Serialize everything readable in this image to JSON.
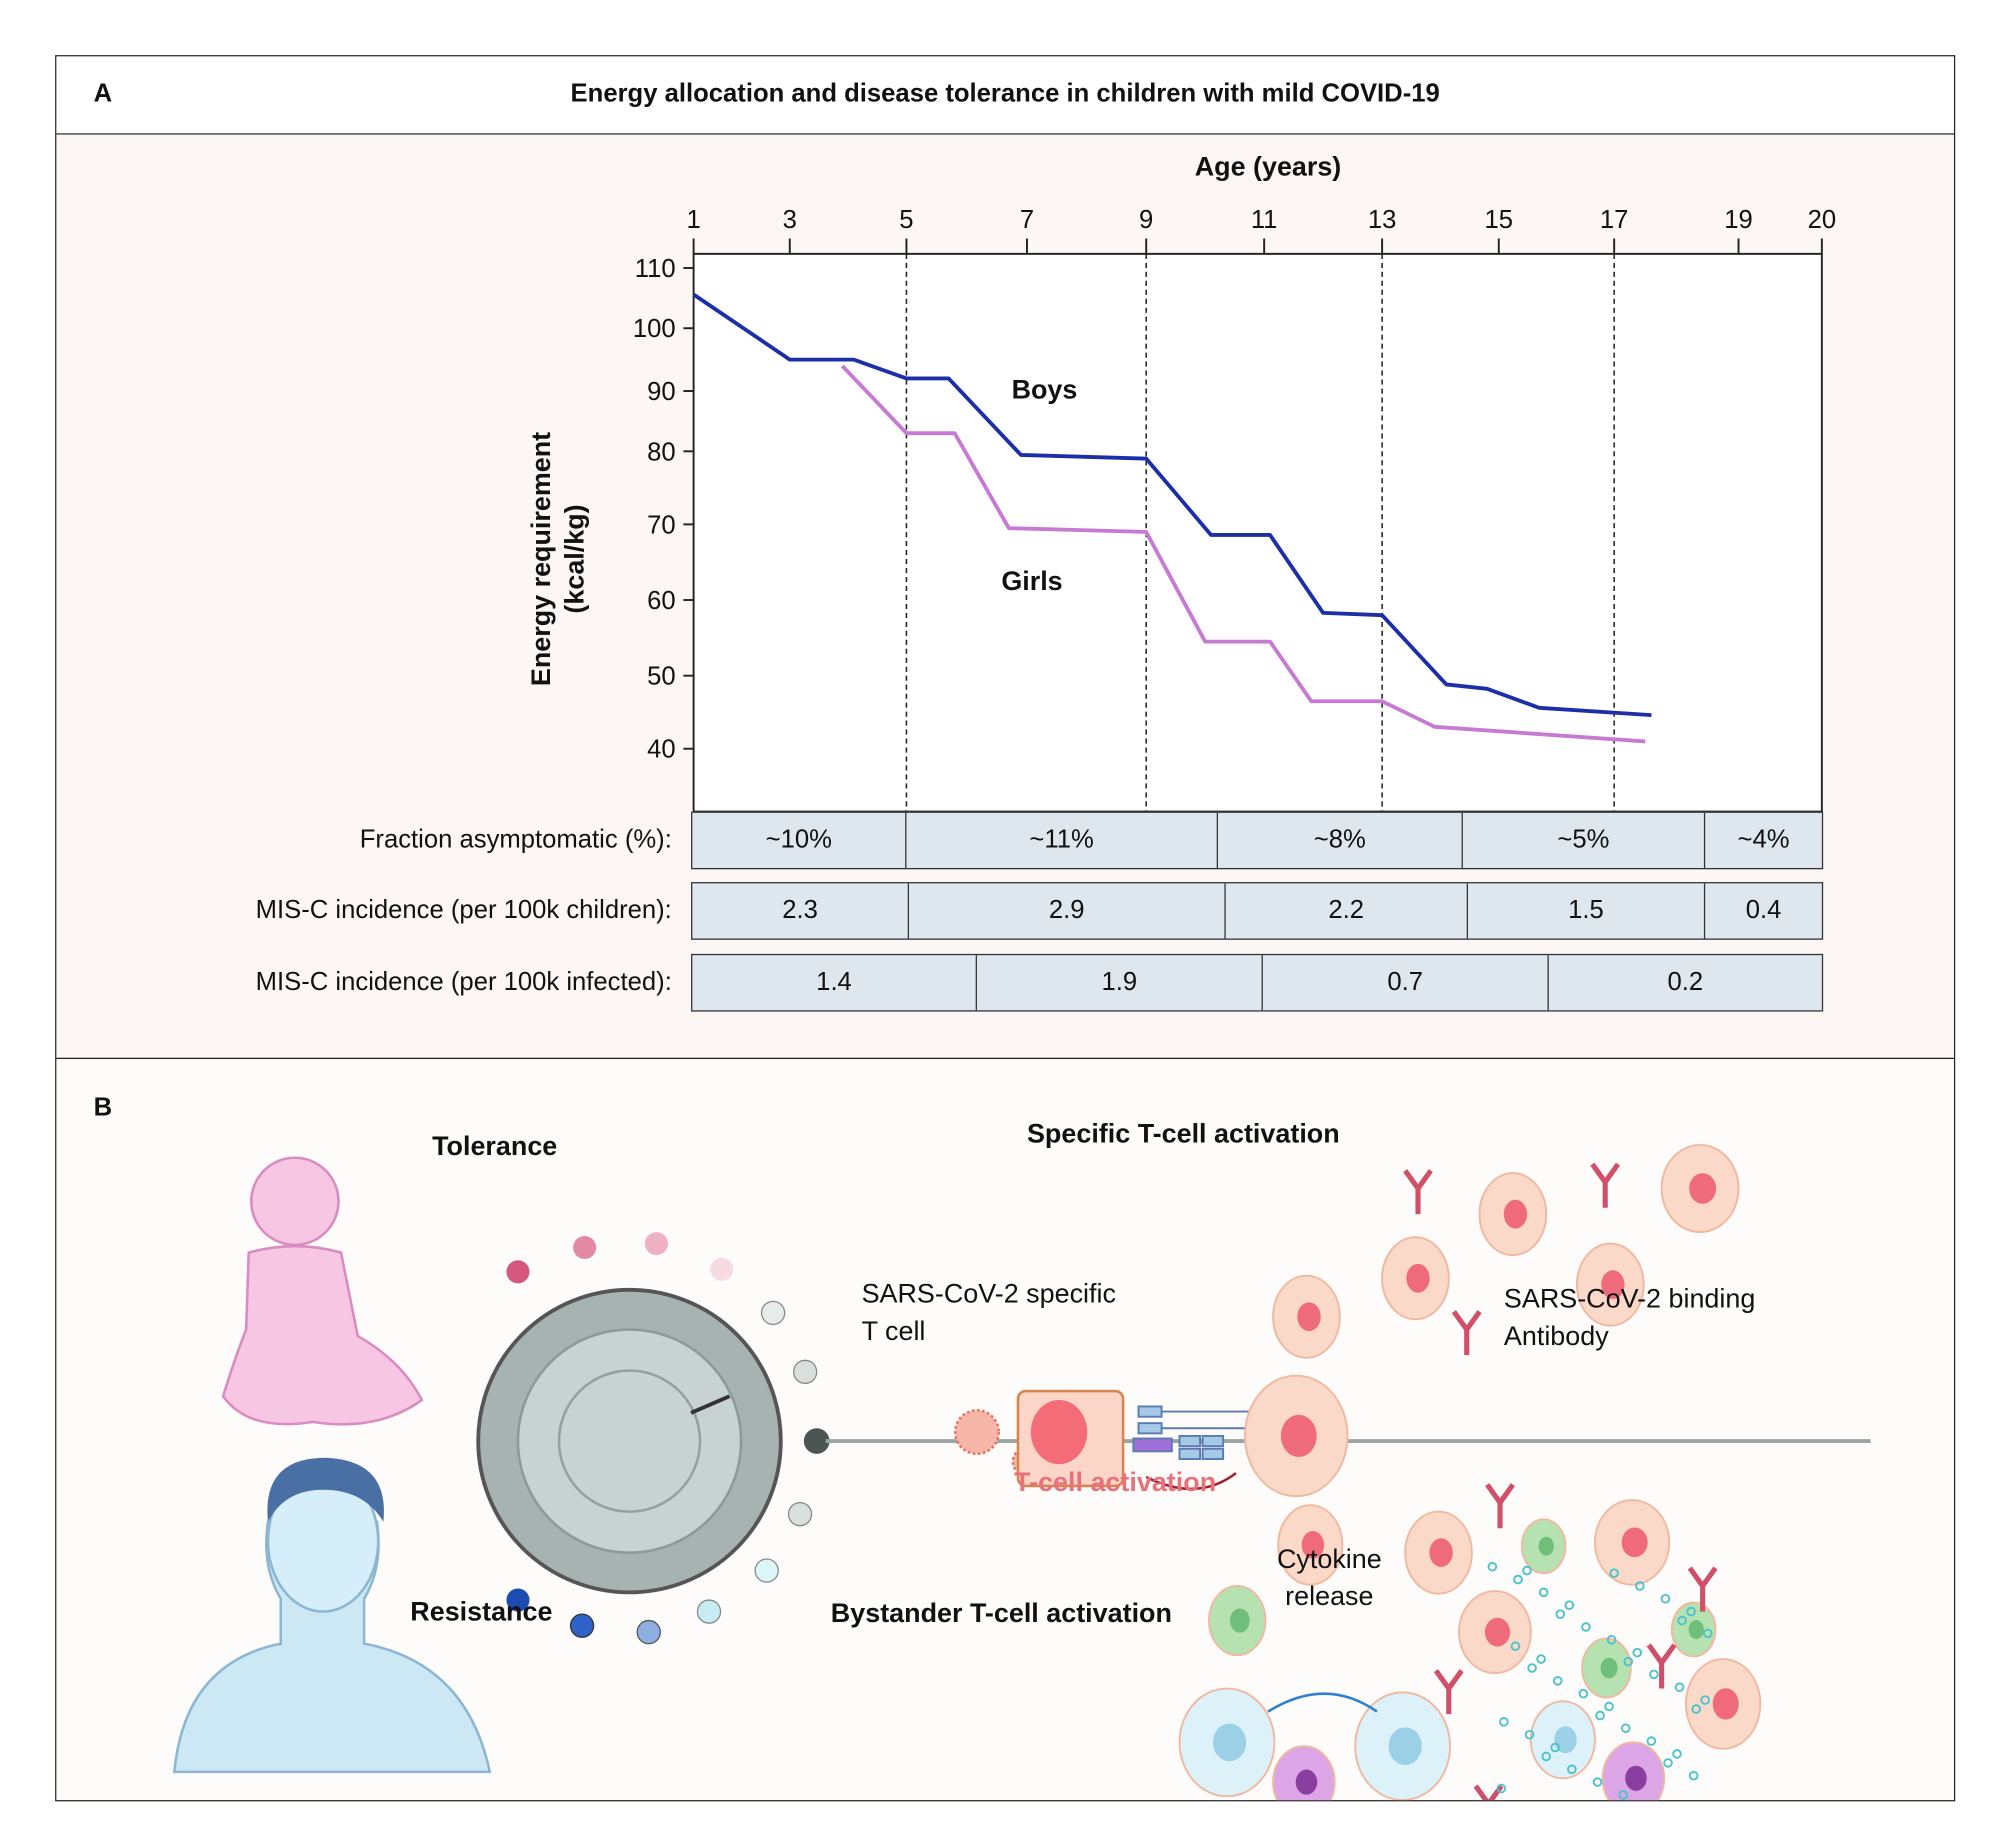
{
  "panel_a": {
    "letter": "A",
    "title": "Energy allocation and disease tolerance in children with mild COVID-19"
  },
  "chart_data": {
    "type": "line",
    "title": "Energy allocation and disease tolerance in children with mild COVID-19",
    "xlabel": "Age (years)",
    "ylabel": "Energy requirement (kcal/kg)",
    "ylabel_lines": [
      "Energy requirement",
      "(kcal/kg)"
    ],
    "x_ticks": [
      1,
      3,
      5,
      7,
      9,
      11,
      13,
      15,
      17,
      19,
      20
    ],
    "y_ticks": [
      110,
      100,
      90,
      80,
      70,
      60,
      50,
      40
    ],
    "xlim": [
      1,
      20
    ],
    "ylim": [
      32,
      112
    ],
    "x_axis_position": "top",
    "grid": false,
    "dashed_verticals_at": [
      5,
      9,
      13,
      17
    ],
    "series": [
      {
        "name": "Boys",
        "color": "#1c2fa8",
        "x": [
          1,
          3,
          4.1,
          5,
          5.7,
          6.9,
          9,
          10.1,
          11.1,
          12.0,
          13,
          14.1,
          14.8,
          15.7,
          17.6
        ],
        "y": [
          105.6,
          95,
          95,
          92,
          92,
          79.5,
          79,
          68.6,
          68.6,
          58.3,
          58,
          48.8,
          48.2,
          45.6,
          44.6
        ]
      },
      {
        "name": "Girls",
        "color": "#c77ad3",
        "x": [
          3.9,
          5,
          5.8,
          6.7,
          9,
          10.0,
          11.1,
          11.8,
          13,
          13.9,
          17.5
        ],
        "y": [
          94,
          83,
          83,
          69.5,
          69,
          54.5,
          54.5,
          46.5,
          46.5,
          43,
          41
        ]
      }
    ]
  },
  "tables": [
    {
      "label": "Fraction asymptomatic (%):",
      "cells": [
        "~10%",
        "~11%",
        "~8%",
        "~5%",
        "~4%"
      ]
    },
    {
      "label": "MIS-C incidence (per 100k children):",
      "cells": [
        "2.3",
        "2.9",
        "2.2",
        "1.5",
        "0.4"
      ]
    },
    {
      "label": "MIS-C incidence (per 100k infected):",
      "cells": [
        "1.4",
        "1.9",
        "0.7",
        "0.2"
      ]
    }
  ],
  "panel_b": {
    "letter": "B",
    "tolerance": "Tolerance",
    "resistance": "Resistance",
    "specific_activation": "Specific T-cell activation",
    "tcell_line1": "SARS-CoV-2 specific",
    "tcell_line2": "T cell",
    "antibody_line1": "SARS-CoV-2 binding",
    "antibody_line2": "Antibody",
    "tcell_activation": "T-cell activation",
    "cytokine_line1": "Cytokine",
    "cytokine_line2": "release",
    "bystander": "Bystander T-cell activation",
    "colors": {
      "tcell_activation": "#e8727c",
      "cells": "#fbd9c8",
      "antibody": "#d0506a",
      "virus": "#e87060"
    }
  }
}
